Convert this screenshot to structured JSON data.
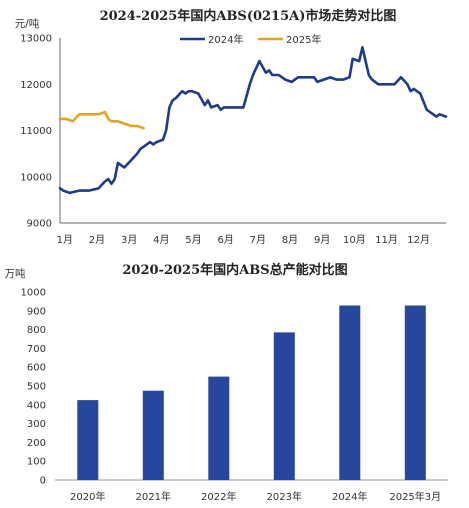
{
  "chart_data": [
    {
      "type": "line",
      "title": "2024-2025年国内ABS(0215A)市场走势对比图",
      "ylabel": "元/吨",
      "ylim": [
        9000,
        13000
      ],
      "yticks": [
        "13000",
        "12000",
        "11000",
        "10000",
        "9000"
      ],
      "xticks": [
        "1月",
        "2月",
        "3月",
        "4月",
        "5月",
        "6月",
        "7月",
        "8月",
        "9月",
        "10月",
        "11月",
        "12月"
      ],
      "grid": false,
      "legend": "top-right",
      "colors": {
        "2024年": "#1f3a8a",
        "2025年": "#e0a526"
      },
      "series": [
        {
          "name": "2024年",
          "x": [
            1.0,
            1.1,
            1.3,
            1.6,
            1.9,
            2.2,
            2.4,
            2.5,
            2.6,
            2.7,
            2.8,
            2.9,
            3.0,
            3.2,
            3.4,
            3.5,
            3.6,
            3.8,
            3.9,
            4.0,
            4.2,
            4.3,
            4.4,
            4.5,
            4.6,
            4.8,
            4.9,
            5.0,
            5.1,
            5.3,
            5.5,
            5.6,
            5.7,
            5.9,
            6.0,
            6.1,
            6.3,
            6.5,
            6.7,
            6.9,
            7.0,
            7.2,
            7.4,
            7.5,
            7.6,
            7.8,
            8.0,
            8.2,
            8.4,
            8.6,
            8.8,
            8.9,
            9.0,
            9.2,
            9.4,
            9.6,
            9.8,
            10.0,
            10.1,
            10.3,
            10.4,
            10.5,
            10.6,
            10.7,
            10.8,
            10.9,
            11.0,
            11.2,
            11.4,
            11.6,
            11.8,
            11.9,
            12.0,
            12.1,
            12.2,
            12.4,
            12.5,
            12.6,
            12.7,
            12.8,
            13.0
          ],
          "values": [
            9750,
            9700,
            9650,
            9700,
            9700,
            9750,
            9900,
            9950,
            9850,
            9950,
            10300,
            10250,
            10200,
            10350,
            10500,
            10600,
            10650,
            10750,
            10700,
            10750,
            10800,
            11000,
            11500,
            11650,
            11700,
            11850,
            11800,
            11850,
            11850,
            11800,
            11550,
            11650,
            11500,
            11550,
            11450,
            11500,
            11500,
            11500,
            11500,
            12000,
            12200,
            12500,
            12250,
            12300,
            12200,
            12200,
            12100,
            12050,
            12150,
            12150,
            12150,
            12150,
            12050,
            12100,
            12150,
            12100,
            12100,
            12150,
            12550,
            12500,
            12800,
            12500,
            12200,
            12100,
            12050,
            12000,
            12000,
            12000,
            12000,
            12150,
            12000,
            11850,
            11900,
            11850,
            11800,
            11450,
            11400,
            11350,
            11300,
            11350,
            11300
          ]
        },
        {
          "name": "2025年",
          "x": [
            1.0,
            1.2,
            1.4,
            1.6,
            1.8,
            2.0,
            2.2,
            2.4,
            2.5,
            2.6,
            2.8,
            3.0,
            3.2,
            3.4,
            3.6
          ],
          "values": [
            11250,
            11250,
            11200,
            11350,
            11350,
            11350,
            11350,
            11400,
            11250,
            11200,
            11200,
            11150,
            11100,
            11100,
            11050
          ]
        }
      ]
    },
    {
      "type": "bar",
      "title": "2020-2025年国内ABS总产能对比图",
      "ylabel": "万吨",
      "ylim": [
        0,
        1000
      ],
      "yticks": [
        "1000",
        "900",
        "800",
        "700",
        "600",
        "500",
        "400",
        "300",
        "200",
        "100",
        "0"
      ],
      "categories": [
        "2020年",
        "2021年",
        "2022年",
        "2023年",
        "2024年",
        "2025年3月"
      ],
      "values": [
        425,
        475,
        550,
        785,
        928,
        928
      ],
      "grid": false,
      "colors": {
        "bar": "#26479c"
      }
    }
  ]
}
